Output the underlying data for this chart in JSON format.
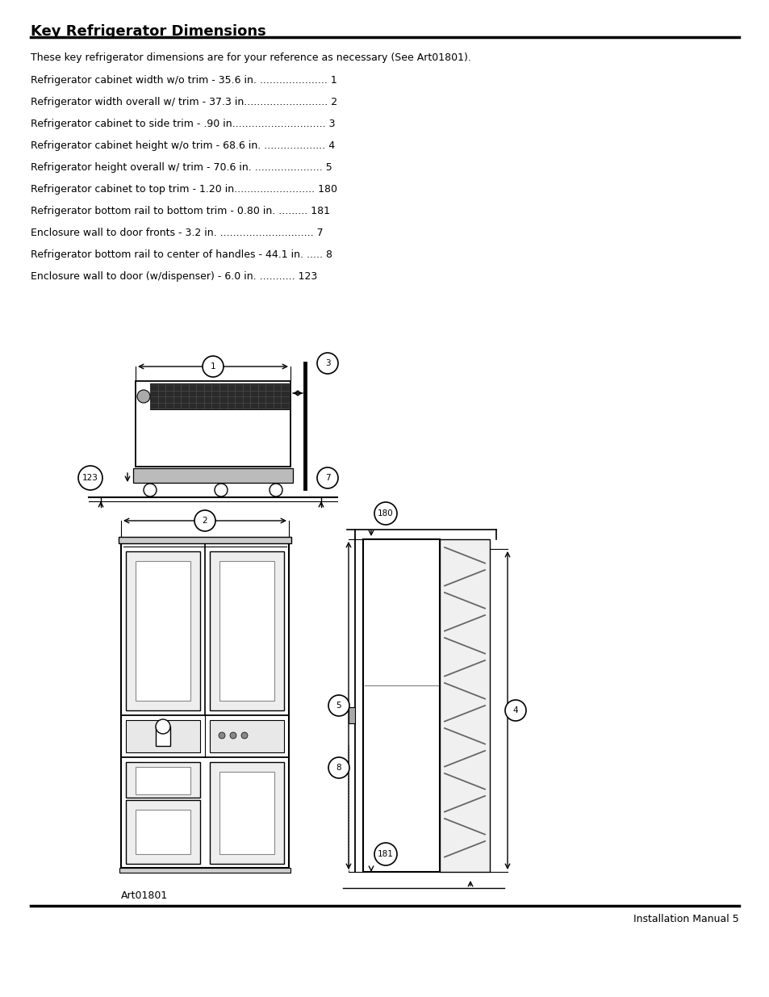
{
  "title": "Key Refrigerator Dimensions",
  "intro": "These key refrigerator dimensions are for your reference as necessary (See Art01801).",
  "items": [
    {
      "text": "Refrigerator cabinet width w/o trim - 35.6 in. ",
      "dots": ".....................",
      "num": "1"
    },
    {
      "text": "Refrigerator width overall w/ trim - 37.3 in.",
      "dots": ".........................",
      "num": "2"
    },
    {
      "text": "Refrigerator cabinet to side trim - .90 in.",
      "dots": "............................",
      "num": "3"
    },
    {
      "text": "Refrigerator cabinet height w/o trim - 68.6 in. ",
      "dots": "...................",
      "num": "4"
    },
    {
      "text": "Refrigerator height overall w/ trim - 70.6 in. ",
      "dots": ".....................",
      "num": "5"
    },
    {
      "text": "Refrigerator cabinet to top trim - 1.20 in.",
      "dots": "........................",
      "num": "180"
    },
    {
      "text": "Refrigerator bottom rail to bottom trim - 0.80 in. ",
      "dots": ".........",
      "num": "181"
    },
    {
      "text": "Enclosure wall to door fronts - 3.2 in. ",
      "dots": ".............................",
      "num": "7"
    },
    {
      "text": "Refrigerator bottom rail to center of handles - 44.1 in. ",
      "dots": ".....",
      "num": "8"
    },
    {
      "text": "Enclosure wall to door (w/dispenser) - 6.0 in. ",
      "dots": "...........",
      "num": "123"
    }
  ],
  "footer_left": "Art01801",
  "footer_right": "Installation Manual 5",
  "bg_color": "#ffffff",
  "text_color": "#000000"
}
